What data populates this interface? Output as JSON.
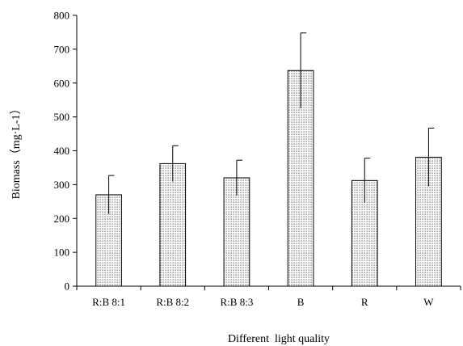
{
  "chart_data": {
    "type": "bar",
    "title": "",
    "xlabel": "Different  light quality",
    "ylabel": "Biomass（mg·L-1）",
    "categories": [
      "R:B 8:1",
      "R:B 8:2",
      "R:B 8:3",
      "B",
      "R",
      "W"
    ],
    "series": [
      {
        "values": [
          270,
          362,
          320,
          637,
          312,
          381
        ],
        "error": [
          57,
          53,
          52,
          111,
          66,
          86
        ]
      }
    ],
    "ylim": [
      0,
      800
    ],
    "yticks": [
      0,
      100,
      200,
      300,
      400,
      500,
      600,
      700,
      800
    ],
    "grid": false,
    "legend": "none",
    "bar_fill": "dotted-gray",
    "colors": {
      "bar_edge": "#000000",
      "bar_dot": "#555555",
      "bar_bg": "#ffffff"
    }
  }
}
